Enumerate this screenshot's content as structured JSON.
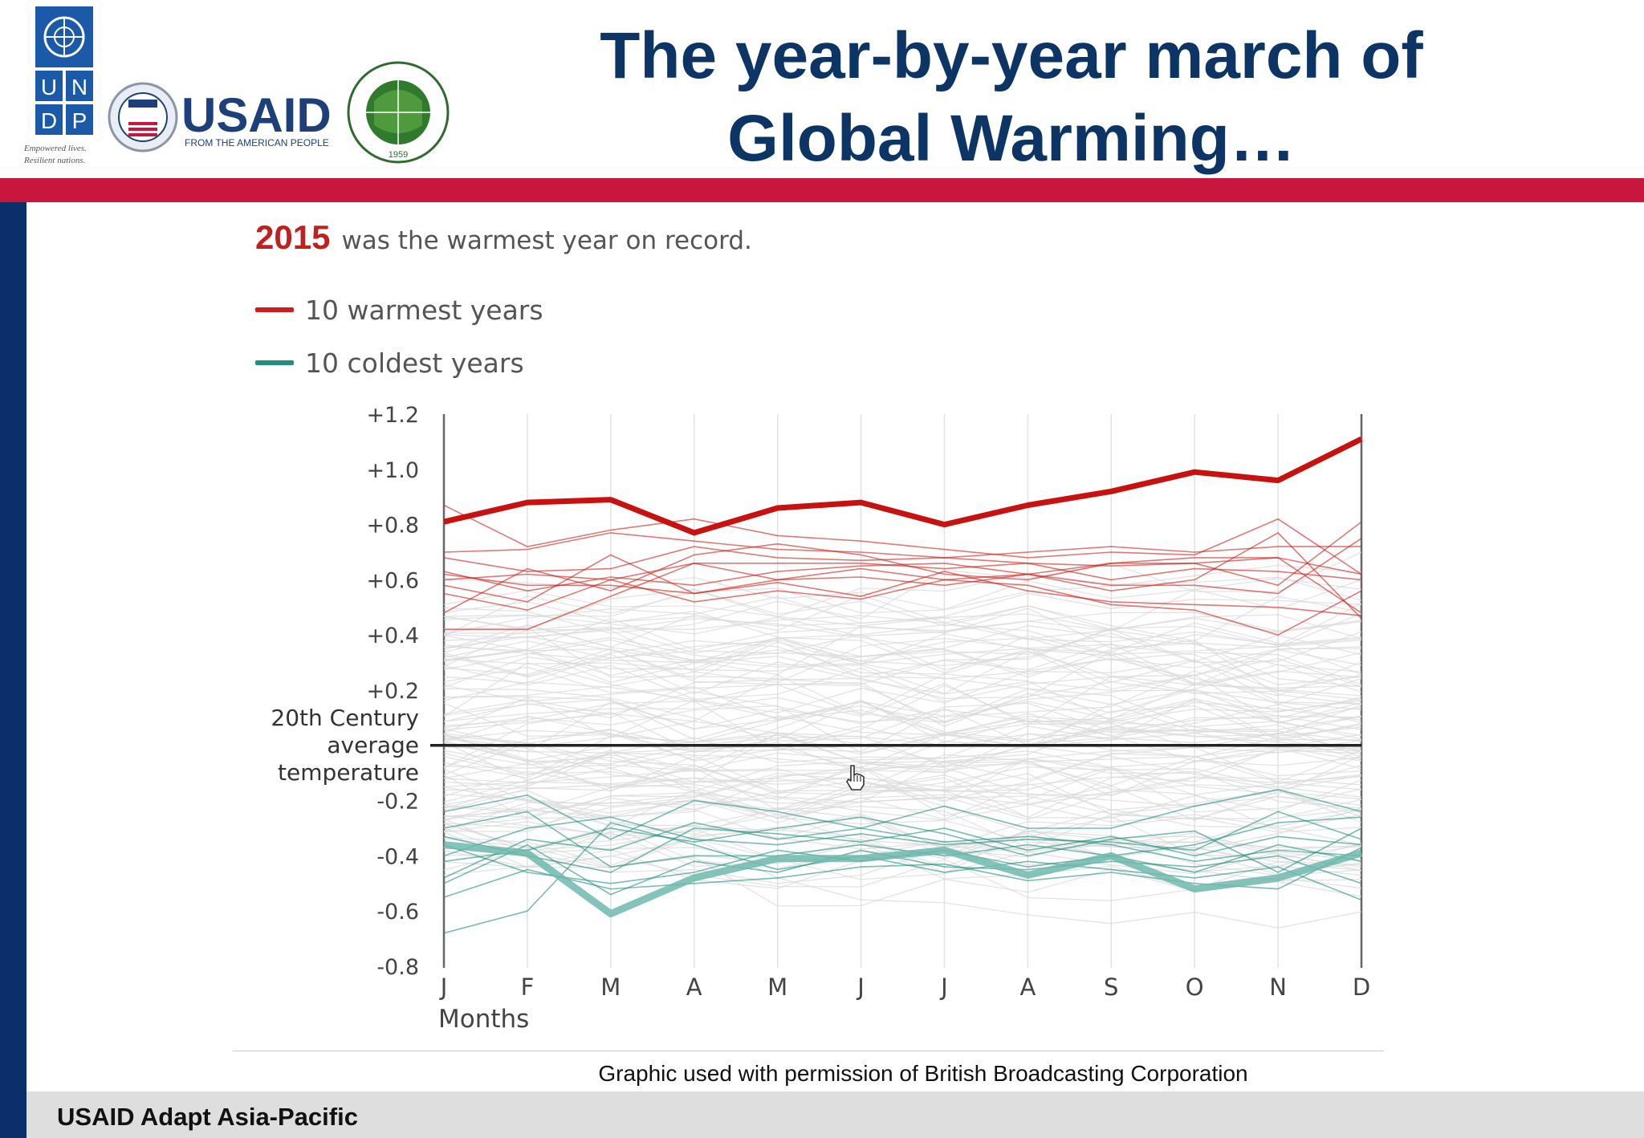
{
  "slide": {
    "title_line1": "The year-by-year march of",
    "title_line2": "Global Warming…",
    "credit": "Graphic used with permission of British Broadcasting Corporation",
    "footer": "USAID Adapt Asia-Pacific"
  },
  "logos": {
    "undp_text": "U N D P",
    "undp_tagline_1": "Empowered lives.",
    "undp_tagline_2": "Resilient nations.",
    "usaid_text": "USAID",
    "usaid_tagline": "FROM THE AMERICAN PEOPLE",
    "ait_text": "ASIAN INSTITUTE OF TECHNOLOGY",
    "ait_year": "1959"
  },
  "colors": {
    "title_blue": "#0c3566",
    "band_red": "#c8163d",
    "band_navy": "#0b2f6a",
    "warm_line": "#cc1f1a",
    "cold_line": "#1f8f80",
    "other_line": "#d9d9d9",
    "baseline": "#222222"
  },
  "chart_data": {
    "type": "line",
    "headline_year": "2015",
    "headline_text": "was the warmest year on record.",
    "legend": [
      {
        "label": "10 warmest years",
        "color": "#cc1f1a"
      },
      {
        "label": "10 coldest years",
        "color": "#1f8f80"
      }
    ],
    "x": [
      "J",
      "F",
      "M",
      "A",
      "M",
      "J",
      "J",
      "A",
      "S",
      "O",
      "N",
      "D"
    ],
    "xlabel": "Months",
    "ylabel": "",
    "ylim": [
      -0.8,
      1.2
    ],
    "yticks": [
      "+1.2",
      "+1.0",
      "+0.8",
      "+0.6",
      "+0.4",
      "+0.2",
      "-0.2",
      "-0.4",
      "-0.6",
      "-0.8"
    ],
    "ytick_values": [
      1.2,
      1.0,
      0.8,
      0.6,
      0.4,
      0.2,
      -0.2,
      -0.4,
      -0.6,
      -0.8
    ],
    "baseline_label": [
      "20th Century",
      "average",
      "temperature"
    ],
    "baseline_value": 0,
    "grid": "vertical",
    "highlight_warm": [
      0.81,
      0.88,
      0.89,
      0.77,
      0.86,
      0.88,
      0.8,
      0.87,
      0.92,
      0.99,
      0.96,
      1.11
    ],
    "highlight_cold": [
      -0.36,
      -0.39,
      -0.61,
      -0.48,
      -0.41,
      -0.41,
      -0.38,
      -0.47,
      -0.4,
      -0.52,
      -0.48,
      -0.39
    ],
    "warmest_years": [
      [
        0.87,
        0.72,
        0.78,
        0.82,
        0.76,
        0.74,
        0.71,
        0.68,
        0.7,
        0.69,
        0.82,
        0.62
      ],
      [
        0.7,
        0.71,
        0.77,
        0.74,
        0.71,
        0.7,
        0.68,
        0.7,
        0.72,
        0.7,
        0.72,
        0.72
      ],
      [
        0.68,
        0.63,
        0.64,
        0.72,
        0.68,
        0.67,
        0.68,
        0.66,
        0.65,
        0.66,
        0.68,
        0.62
      ],
      [
        0.63,
        0.56,
        0.61,
        0.58,
        0.63,
        0.65,
        0.66,
        0.62,
        0.66,
        0.68,
        0.68,
        0.48
      ],
      [
        0.6,
        0.62,
        0.6,
        0.66,
        0.66,
        0.66,
        0.64,
        0.66,
        0.6,
        0.64,
        0.63,
        0.6
      ],
      [
        0.58,
        0.52,
        0.69,
        0.55,
        0.6,
        0.64,
        0.6,
        0.62,
        0.56,
        0.6,
        0.77,
        0.46
      ],
      [
        0.55,
        0.49,
        0.6,
        0.52,
        0.56,
        0.53,
        0.6,
        0.58,
        0.51,
        0.49,
        0.4,
        0.56
      ],
      [
        0.42,
        0.42,
        0.54,
        0.66,
        0.6,
        0.61,
        0.58,
        0.62,
        0.58,
        0.58,
        0.55,
        0.75
      ],
      [
        0.48,
        0.64,
        0.56,
        0.69,
        0.73,
        0.69,
        0.62,
        0.6,
        0.66,
        0.66,
        0.58,
        0.81
      ],
      [
        0.62,
        0.58,
        0.58,
        0.55,
        0.59,
        0.54,
        0.63,
        0.56,
        0.52,
        0.51,
        0.5,
        0.47
      ]
    ],
    "coldest_years": [
      [
        -0.68,
        -0.6,
        -0.28,
        -0.36,
        -0.45,
        -0.4,
        -0.46,
        -0.42,
        -0.45,
        -0.48,
        -0.44,
        -0.56
      ],
      [
        -0.55,
        -0.45,
        -0.52,
        -0.5,
        -0.48,
        -0.44,
        -0.43,
        -0.49,
        -0.46,
        -0.5,
        -0.52,
        -0.37
      ],
      [
        -0.48,
        -0.34,
        -0.38,
        -0.28,
        -0.34,
        -0.3,
        -0.35,
        -0.33,
        -0.36,
        -0.42,
        -0.38,
        -0.4
      ],
      [
        -0.42,
        -0.38,
        -0.3,
        -0.35,
        -0.3,
        -0.26,
        -0.32,
        -0.4,
        -0.34,
        -0.31,
        -0.46,
        -0.3
      ],
      [
        -0.3,
        -0.24,
        -0.44,
        -0.4,
        -0.4,
        -0.36,
        -0.4,
        -0.36,
        -0.4,
        -0.36,
        -0.28,
        -0.26
      ],
      [
        -0.24,
        -0.18,
        -0.34,
        -0.2,
        -0.24,
        -0.3,
        -0.22,
        -0.3,
        -0.3,
        -0.22,
        -0.16,
        -0.24
      ],
      [
        -0.36,
        -0.46,
        -0.5,
        -0.46,
        -0.38,
        -0.42,
        -0.38,
        -0.44,
        -0.4,
        -0.46,
        -0.36,
        -0.42
      ],
      [
        -0.5,
        -0.36,
        -0.54,
        -0.42,
        -0.46,
        -0.38,
        -0.44,
        -0.45,
        -0.42,
        -0.44,
        -0.4,
        -0.5
      ],
      [
        -0.4,
        -0.3,
        -0.26,
        -0.34,
        -0.36,
        -0.32,
        -0.36,
        -0.34,
        -0.35,
        -0.38,
        -0.24,
        -0.34
      ],
      [
        -0.33,
        -0.4,
        -0.46,
        -0.3,
        -0.32,
        -0.35,
        -0.3,
        -0.38,
        -0.33,
        -0.4,
        -0.33,
        -0.36
      ]
    ]
  }
}
